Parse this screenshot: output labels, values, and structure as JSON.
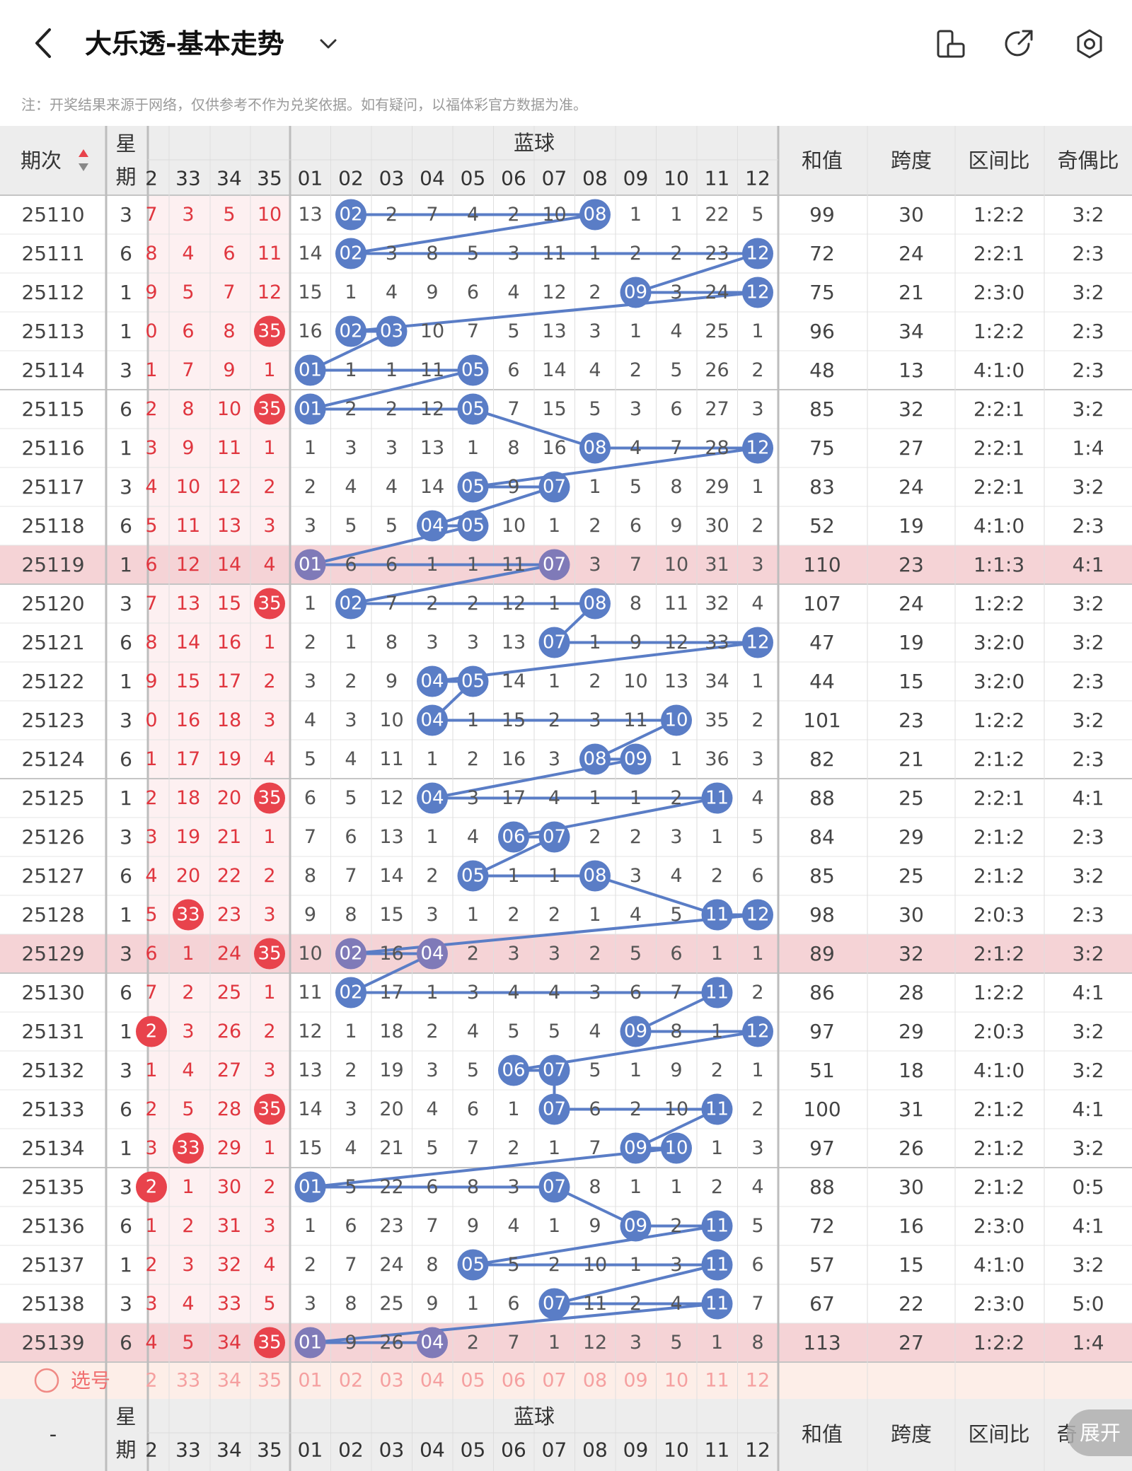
{
  "header": {
    "title": "大乐透-基本走势",
    "back_icon": "chevron-left-icon",
    "dropdown_icon": "chevron-down-icon",
    "icons": [
      "phone-rotate-icon",
      "share-icon",
      "settings-icon"
    ]
  },
  "notice": "注：开奖结果来源于网络，仅供参考不作为兑奖依据。如有疑问，以福体彩官方数据为准。",
  "table": {
    "col_issue": "期次",
    "col_week": "星期",
    "blue_group_label": "蓝球",
    "col_sum": "和值",
    "col_span": "跨度",
    "col_zone": "区间比",
    "col_oddeven": "奇偶比",
    "red_headers": [
      "2",
      "33",
      "34",
      "35"
    ],
    "blue_headers": [
      "01",
      "02",
      "03",
      "04",
      "05",
      "06",
      "07",
      "08",
      "09",
      "10",
      "11",
      "12"
    ],
    "rows": [
      {
        "issue": "25110",
        "week": "3",
        "red": [
          "7",
          "3",
          "5",
          "10"
        ],
        "blue": [
          "13",
          "02",
          "2",
          "7",
          "4",
          "2",
          "10",
          "08",
          "1",
          "1",
          "22",
          "5"
        ],
        "sum": "99",
        "span": "30",
        "zone": "1:2:2",
        "oe": "3:2"
      },
      {
        "issue": "25111",
        "week": "6",
        "red": [
          "8",
          "4",
          "6",
          "11"
        ],
        "blue": [
          "14",
          "02",
          "3",
          "8",
          "5",
          "3",
          "11",
          "1",
          "2",
          "2",
          "23",
          "12"
        ],
        "sum": "72",
        "span": "24",
        "zone": "2:2:1",
        "oe": "2:3"
      },
      {
        "issue": "25112",
        "week": "1",
        "red": [
          "9",
          "5",
          "7",
          "12"
        ],
        "blue": [
          "15",
          "1",
          "4",
          "9",
          "6",
          "4",
          "12",
          "2",
          "09",
          "3",
          "24",
          "12"
        ],
        "sum": "75",
        "span": "21",
        "zone": "2:3:0",
        "oe": "3:2"
      },
      {
        "issue": "25113",
        "week": "1",
        "red": [
          "0",
          "6",
          "8",
          "35"
        ],
        "blue": [
          "16",
          "02",
          "03",
          "10",
          "7",
          "5",
          "13",
          "3",
          "1",
          "4",
          "25",
          "1"
        ],
        "sum": "96",
        "span": "34",
        "zone": "1:2:2",
        "oe": "2:3"
      },
      {
        "issue": "25114",
        "week": "3",
        "red": [
          "1",
          "7",
          "9",
          "1"
        ],
        "blue": [
          "01",
          "1",
          "1",
          "11",
          "05",
          "6",
          "14",
          "4",
          "2",
          "5",
          "26",
          "2"
        ],
        "sum": "48",
        "span": "13",
        "zone": "4:1:0",
        "oe": "2:3"
      },
      {
        "issue": "25115",
        "week": "6",
        "red": [
          "2",
          "8",
          "10",
          "35"
        ],
        "blue": [
          "01",
          "2",
          "2",
          "12",
          "05",
          "7",
          "15",
          "5",
          "3",
          "6",
          "27",
          "3"
        ],
        "sum": "85",
        "span": "32",
        "zone": "2:2:1",
        "oe": "3:2"
      },
      {
        "issue": "25116",
        "week": "1",
        "red": [
          "3",
          "9",
          "11",
          "1"
        ],
        "blue": [
          "1",
          "3",
          "3",
          "13",
          "1",
          "8",
          "16",
          "08",
          "4",
          "7",
          "28",
          "12"
        ],
        "sum": "75",
        "span": "27",
        "zone": "2:2:1",
        "oe": "1:4"
      },
      {
        "issue": "25117",
        "week": "3",
        "red": [
          "4",
          "10",
          "12",
          "2"
        ],
        "blue": [
          "2",
          "4",
          "4",
          "14",
          "05",
          "9",
          "07",
          "1",
          "5",
          "8",
          "29",
          "1"
        ],
        "sum": "83",
        "span": "24",
        "zone": "2:2:1",
        "oe": "3:2"
      },
      {
        "issue": "25118",
        "week": "6",
        "red": [
          "5",
          "11",
          "13",
          "3"
        ],
        "blue": [
          "3",
          "5",
          "5",
          "04",
          "05",
          "10",
          "1",
          "2",
          "6",
          "9",
          "30",
          "2"
        ],
        "sum": "52",
        "span": "19",
        "zone": "4:1:0",
        "oe": "2:3"
      },
      {
        "issue": "25119",
        "week": "1",
        "red": [
          "6",
          "12",
          "14",
          "4"
        ],
        "blue": [
          "01",
          "6",
          "6",
          "1",
          "1",
          "11",
          "07",
          "3",
          "7",
          "10",
          "31",
          "3"
        ],
        "sum": "110",
        "span": "23",
        "zone": "1:1:3",
        "oe": "4:1",
        "hl": true
      },
      {
        "issue": "25120",
        "week": "3",
        "red": [
          "7",
          "13",
          "15",
          "35"
        ],
        "blue": [
          "1",
          "02",
          "7",
          "2",
          "2",
          "12",
          "1",
          "08",
          "8",
          "11",
          "32",
          "4"
        ],
        "sum": "107",
        "span": "24",
        "zone": "1:2:2",
        "oe": "3:2"
      },
      {
        "issue": "25121",
        "week": "6",
        "red": [
          "8",
          "14",
          "16",
          "1"
        ],
        "blue": [
          "2",
          "1",
          "8",
          "3",
          "3",
          "13",
          "07",
          "1",
          "9",
          "12",
          "33",
          "12"
        ],
        "sum": "47",
        "span": "19",
        "zone": "3:2:0",
        "oe": "3:2"
      },
      {
        "issue": "25122",
        "week": "1",
        "red": [
          "9",
          "15",
          "17",
          "2"
        ],
        "blue": [
          "3",
          "2",
          "9",
          "04",
          "05",
          "14",
          "1",
          "2",
          "10",
          "13",
          "34",
          "1"
        ],
        "sum": "44",
        "span": "15",
        "zone": "3:2:0",
        "oe": "2:3"
      },
      {
        "issue": "25123",
        "week": "3",
        "red": [
          "0",
          "16",
          "18",
          "3"
        ],
        "blue": [
          "4",
          "3",
          "10",
          "04",
          "1",
          "15",
          "2",
          "3",
          "11",
          "10",
          "35",
          "2"
        ],
        "sum": "101",
        "span": "23",
        "zone": "1:2:2",
        "oe": "3:2"
      },
      {
        "issue": "25124",
        "week": "6",
        "red": [
          "1",
          "17",
          "19",
          "4"
        ],
        "blue": [
          "5",
          "4",
          "11",
          "1",
          "2",
          "16",
          "3",
          "08",
          "09",
          "1",
          "36",
          "3"
        ],
        "sum": "82",
        "span": "21",
        "zone": "2:1:2",
        "oe": "2:3"
      },
      {
        "issue": "25125",
        "week": "1",
        "red": [
          "2",
          "18",
          "20",
          "35"
        ],
        "blue": [
          "6",
          "5",
          "12",
          "04",
          "3",
          "17",
          "4",
          "1",
          "1",
          "2",
          "11",
          "4"
        ],
        "sum": "88",
        "span": "25",
        "zone": "2:2:1",
        "oe": "4:1"
      },
      {
        "issue": "25126",
        "week": "3",
        "red": [
          "3",
          "19",
          "21",
          "1"
        ],
        "blue": [
          "7",
          "6",
          "13",
          "1",
          "4",
          "06",
          "07",
          "2",
          "2",
          "3",
          "1",
          "5"
        ],
        "sum": "84",
        "span": "29",
        "zone": "2:1:2",
        "oe": "2:3"
      },
      {
        "issue": "25127",
        "week": "6",
        "red": [
          "4",
          "20",
          "22",
          "2"
        ],
        "blue": [
          "8",
          "7",
          "14",
          "2",
          "05",
          "1",
          "1",
          "08",
          "3",
          "4",
          "2",
          "6"
        ],
        "sum": "85",
        "span": "25",
        "zone": "2:1:2",
        "oe": "3:2"
      },
      {
        "issue": "25128",
        "week": "1",
        "red": [
          "5",
          "33",
          "23",
          "3"
        ],
        "blue": [
          "9",
          "8",
          "15",
          "3",
          "1",
          "2",
          "2",
          "1",
          "4",
          "5",
          "11",
          "12"
        ],
        "sum": "98",
        "span": "30",
        "zone": "2:0:3",
        "oe": "2:3"
      },
      {
        "issue": "25129",
        "week": "3",
        "red": [
          "6",
          "1",
          "24",
          "35"
        ],
        "blue": [
          "10",
          "02",
          "16",
          "04",
          "2",
          "3",
          "3",
          "2",
          "5",
          "6",
          "1",
          "1"
        ],
        "sum": "89",
        "span": "32",
        "zone": "2:1:2",
        "oe": "3:2",
        "hl": true
      },
      {
        "issue": "25130",
        "week": "6",
        "red": [
          "7",
          "2",
          "25",
          "1"
        ],
        "blue": [
          "11",
          "02",
          "17",
          "1",
          "3",
          "4",
          "4",
          "3",
          "6",
          "7",
          "11",
          "2"
        ],
        "sum": "86",
        "span": "28",
        "zone": "1:2:2",
        "oe": "4:1"
      },
      {
        "issue": "25131",
        "week": "1",
        "red": [
          "2",
          "3",
          "26",
          "2"
        ],
        "blue": [
          "12",
          "1",
          "18",
          "2",
          "4",
          "5",
          "5",
          "4",
          "09",
          "8",
          "1",
          "12"
        ],
        "sum": "97",
        "span": "29",
        "zone": "2:0:3",
        "oe": "3:2"
      },
      {
        "issue": "25132",
        "week": "3",
        "red": [
          "1",
          "4",
          "27",
          "3"
        ],
        "blue": [
          "13",
          "2",
          "19",
          "3",
          "5",
          "06",
          "07",
          "5",
          "1",
          "9",
          "2",
          "1"
        ],
        "sum": "51",
        "span": "18",
        "zone": "4:1:0",
        "oe": "3:2"
      },
      {
        "issue": "25133",
        "week": "6",
        "red": [
          "2",
          "5",
          "28",
          "35"
        ],
        "blue": [
          "14",
          "3",
          "20",
          "4",
          "6",
          "1",
          "07",
          "6",
          "2",
          "10",
          "11",
          "2"
        ],
        "sum": "100",
        "span": "31",
        "zone": "2:1:2",
        "oe": "4:1"
      },
      {
        "issue": "25134",
        "week": "1",
        "red": [
          "3",
          "33",
          "29",
          "1"
        ],
        "blue": [
          "15",
          "4",
          "21",
          "5",
          "7",
          "2",
          "1",
          "7",
          "09",
          "10",
          "1",
          "3"
        ],
        "sum": "97",
        "span": "26",
        "zone": "2:1:2",
        "oe": "3:2"
      },
      {
        "issue": "25135",
        "week": "3",
        "red": [
          "2",
          "1",
          "30",
          "2"
        ],
        "blue": [
          "01",
          "5",
          "22",
          "6",
          "8",
          "3",
          "07",
          "8",
          "1",
          "1",
          "2",
          "4"
        ],
        "sum": "88",
        "span": "30",
        "zone": "2:1:2",
        "oe": "0:5"
      },
      {
        "issue": "25136",
        "week": "6",
        "red": [
          "1",
          "2",
          "31",
          "3"
        ],
        "blue": [
          "1",
          "6",
          "23",
          "7",
          "9",
          "4",
          "1",
          "9",
          "09",
          "2",
          "11",
          "5"
        ],
        "sum": "72",
        "span": "16",
        "zone": "2:3:0",
        "oe": "4:1"
      },
      {
        "issue": "25137",
        "week": "1",
        "red": [
          "2",
          "3",
          "32",
          "4"
        ],
        "blue": [
          "2",
          "7",
          "24",
          "8",
          "05",
          "5",
          "2",
          "10",
          "1",
          "3",
          "11",
          "6"
        ],
        "sum": "57",
        "span": "15",
        "zone": "4:1:0",
        "oe": "3:2"
      },
      {
        "issue": "25138",
        "week": "3",
        "red": [
          "3",
          "4",
          "33",
          "5"
        ],
        "blue": [
          "3",
          "8",
          "25",
          "9",
          "1",
          "6",
          "07",
          "11",
          "2",
          "4",
          "11",
          "7"
        ],
        "sum": "67",
        "span": "22",
        "zone": "2:3:0",
        "oe": "5:0"
      },
      {
        "issue": "25139",
        "week": "6",
        "red": [
          "4",
          "5",
          "34",
          "35"
        ],
        "blue": [
          "01",
          "9",
          "26",
          "04",
          "2",
          "7",
          "1",
          "12",
          "3",
          "5",
          "1",
          "8"
        ],
        "sum": "113",
        "span": "27",
        "zone": "1:2:2",
        "oe": "1:4",
        "hl": true
      }
    ],
    "blue_hits": [
      [
        1,
        7
      ],
      [
        1,
        11
      ],
      [
        8,
        11
      ],
      [
        1,
        2
      ],
      [
        0,
        4
      ],
      [
        0,
        4
      ],
      [
        7,
        11
      ],
      [
        4,
        6
      ],
      [
        3,
        4
      ],
      [
        0,
        6
      ],
      [
        1,
        7
      ],
      [
        6,
        11
      ],
      [
        3,
        4
      ],
      [
        3,
        9
      ],
      [
        7,
        8
      ],
      [
        3,
        10
      ],
      [
        5,
        6
      ],
      [
        4,
        7
      ],
      [
        10,
        11
      ],
      [
        1,
        3
      ],
      [
        1,
        10
      ],
      [
        8,
        11
      ],
      [
        5,
        6
      ],
      [
        6,
        10
      ],
      [
        8,
        9
      ],
      [
        0,
        6
      ],
      [
        8,
        10
      ],
      [
        4,
        10
      ],
      [
        6,
        10
      ],
      [
        0,
        3
      ]
    ],
    "red_hits": [
      [],
      [],
      [],
      [
        3
      ],
      [],
      [
        3
      ],
      [],
      [],
      [],
      [],
      [
        3
      ],
      [],
      [],
      [],
      [],
      [
        3
      ],
      [],
      [],
      [
        1
      ],
      [
        3
      ],
      [],
      [
        0
      ],
      [],
      [
        3
      ],
      [
        1
      ],
      [
        0
      ],
      [],
      [],
      [],
      [
        3
      ]
    ],
    "select_label": "选号",
    "select_red": [
      "2",
      "33",
      "34",
      "35"
    ],
    "select_blue": [
      "01",
      "02",
      "03",
      "04",
      "05",
      "06",
      "07",
      "08",
      "09",
      "10",
      "11",
      "12"
    ],
    "footer_issue": "-",
    "footer_week": "星期",
    "footer_blue_label": "蓝球",
    "footer_sum": "和值",
    "footer_span": "跨度",
    "footer_zone": "区间比",
    "footer_oe": "奇"
  },
  "expand_button": "展开",
  "colors": {
    "red_ball": "#e8434c",
    "blue_ball": "#5a7dc6",
    "highlight_row": "#f5d3d6",
    "red_zone_bg": "#fdf0f1",
    "text_red": "#e0363f"
  }
}
